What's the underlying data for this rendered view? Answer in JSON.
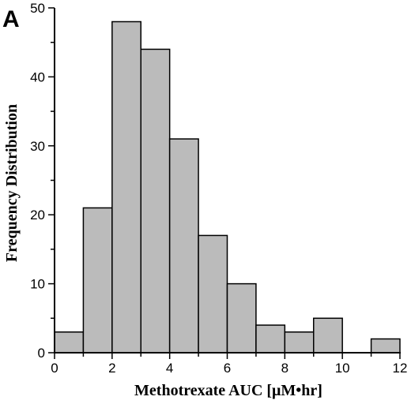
{
  "panel_label": "A",
  "chart_data": {
    "type": "bar",
    "subtype": "histogram",
    "bin_edges": [
      0,
      1,
      2,
      3,
      4,
      5,
      6,
      7,
      8,
      9,
      10,
      11,
      12
    ],
    "values": [
      3,
      21,
      48,
      44,
      31,
      17,
      10,
      4,
      3,
      5,
      0,
      2
    ],
    "xlabel": "Methotrexate AUC [μM•hr]",
    "ylabel": "Frequency Distribution",
    "xlim": [
      0,
      12
    ],
    "ylim": [
      0,
      50
    ],
    "xticks": [
      "0",
      "2",
      "4",
      "6",
      "8",
      "10",
      "12"
    ],
    "yticks": [
      "0",
      "10",
      "20",
      "30",
      "40",
      "50"
    ],
    "grid": false,
    "bar_color": "#bbbbbb",
    "edge_color": "#000000"
  }
}
